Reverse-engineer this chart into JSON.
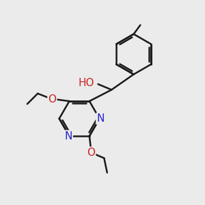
{
  "bg_color": "#ebebeb",
  "atom_colors": {
    "N": "#2222cc",
    "O": "#cc2222"
  },
  "bond_color": "#1a1a1a",
  "bond_width": 1.8,
  "fig_w": 3.0,
  "fig_h": 3.0,
  "dpi": 100
}
